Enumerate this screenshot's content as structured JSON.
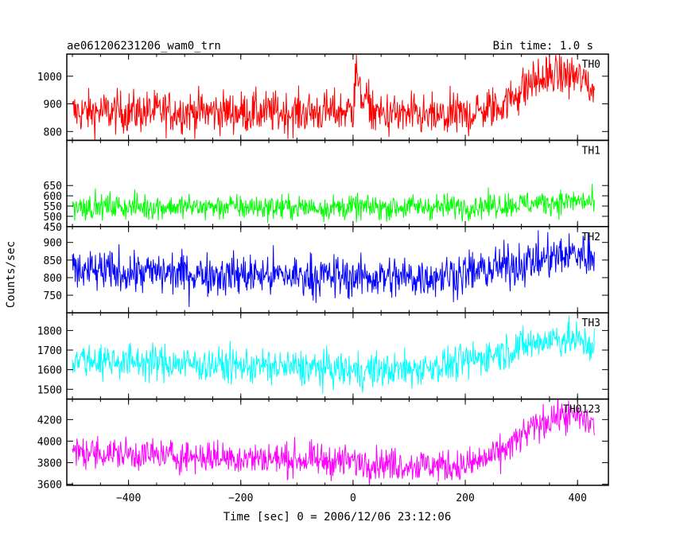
{
  "header": {
    "left_title": "ae061206231206_wam0_trn",
    "right_title": "Bin time: 1.0 s"
  },
  "chart_data": {
    "type": "line",
    "xlabel": "Time [sec] 0 = 2006/12/06 23:12:06",
    "ylabel": "Counts/sec",
    "xlim": [
      -510,
      455
    ],
    "x_ticks": [
      -400,
      -200,
      0,
      200,
      400
    ],
    "x_range_data": [
      -500,
      430
    ],
    "bin_time_s": 1.0,
    "panels": [
      {
        "name": "TH0",
        "color": "#ff0000",
        "ylim": [
          768,
          1080
        ],
        "y_ticks": [
          800,
          900,
          1000
        ],
        "noise": 38,
        "spike_at": 5,
        "trend_knots": [
          [
            -500,
            870
          ],
          [
            -300,
            872
          ],
          [
            -100,
            868
          ],
          [
            0,
            875
          ],
          [
            5,
            960
          ],
          [
            40,
            865
          ],
          [
            150,
            850
          ],
          [
            200,
            860
          ],
          [
            260,
            890
          ],
          [
            320,
            980
          ],
          [
            360,
            1005
          ],
          [
            400,
            1000
          ],
          [
            430,
            950
          ]
        ]
      },
      {
        "name": "TH1",
        "color": "#00ff00",
        "ylim": [
          450,
          870
        ],
        "y_ticks": [
          450,
          500,
          550,
          600,
          650
        ],
        "noise": 30,
        "trend_knots": [
          [
            -500,
            548
          ],
          [
            -200,
            545
          ],
          [
            0,
            543
          ],
          [
            200,
            548
          ],
          [
            300,
            560
          ],
          [
            400,
            575
          ],
          [
            430,
            565
          ]
        ]
      },
      {
        "name": "TH2",
        "color": "#0000ff",
        "ylim": [
          700,
          945
        ],
        "y_ticks": [
          750,
          800,
          850,
          900
        ],
        "noise": 30,
        "trend_knots": [
          [
            -500,
            818
          ],
          [
            -300,
            812
          ],
          [
            -100,
            805
          ],
          [
            100,
            800
          ],
          [
            200,
            812
          ],
          [
            300,
            840
          ],
          [
            400,
            870
          ],
          [
            430,
            860
          ]
        ]
      },
      {
        "name": "TH3",
        "color": "#00ffff",
        "ylim": [
          1450,
          1890
        ],
        "y_ticks": [
          1500,
          1600,
          1700,
          1800
        ],
        "noise": 45,
        "trend_knots": [
          [
            -500,
            1655
          ],
          [
            -300,
            1630
          ],
          [
            -100,
            1610
          ],
          [
            0,
            1595
          ],
          [
            100,
            1600
          ],
          [
            200,
            1640
          ],
          [
            300,
            1720
          ],
          [
            360,
            1760
          ],
          [
            400,
            1750
          ],
          [
            430,
            1720
          ]
        ]
      },
      {
        "name": "TH0123",
        "color": "#ff00ff",
        "ylim": [
          3590,
          4390
        ],
        "y_ticks": [
          3600,
          3800,
          4000,
          4200
        ],
        "noise": 75,
        "trend_knots": [
          [
            -500,
            3900
          ],
          [
            -300,
            3860
          ],
          [
            -100,
            3830
          ],
          [
            0,
            3810
          ],
          [
            100,
            3780
          ],
          [
            200,
            3770
          ],
          [
            260,
            3880
          ],
          [
            320,
            4120
          ],
          [
            360,
            4230
          ],
          [
            400,
            4230
          ],
          [
            430,
            4150
          ]
        ]
      }
    ]
  }
}
